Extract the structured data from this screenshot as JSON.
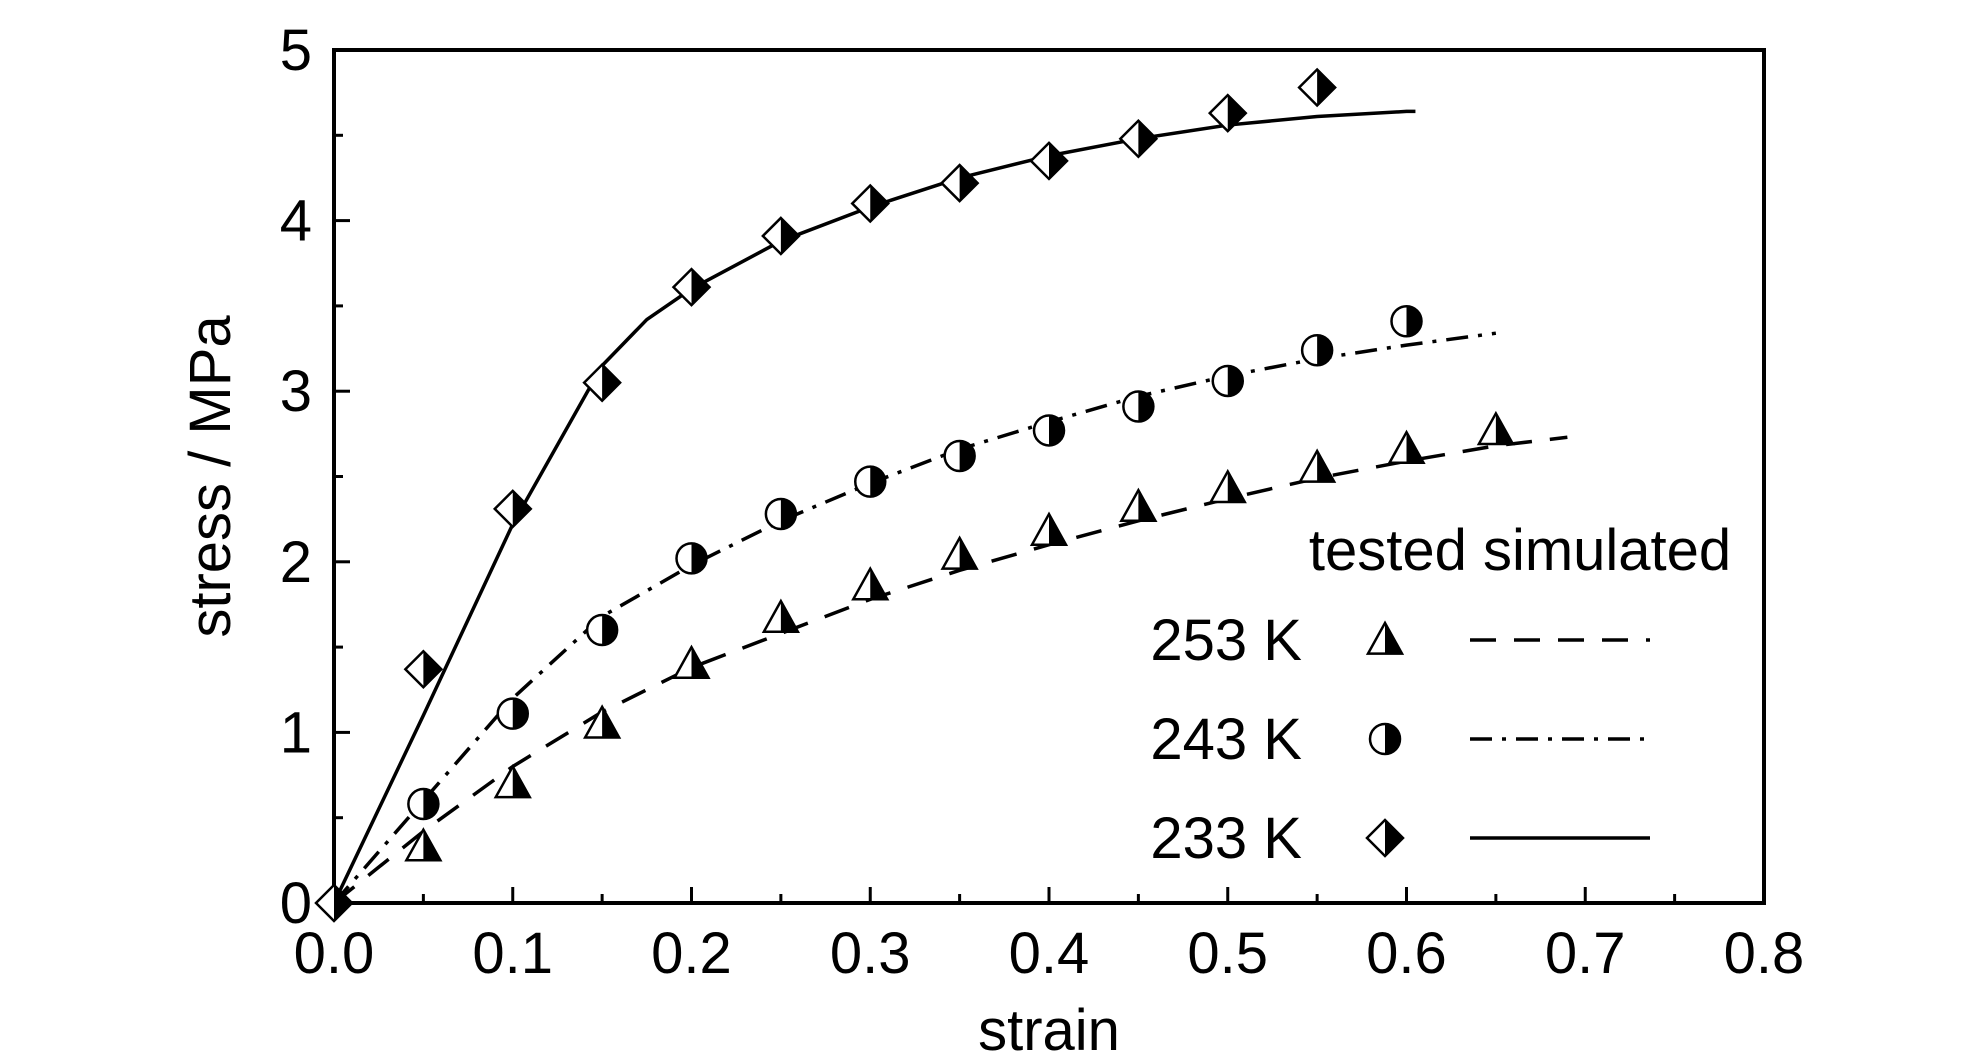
{
  "chart_data": {
    "type": "scatter",
    "title": "",
    "xlabel": "strain",
    "ylabel": "stress / MPa",
    "xlim": [
      0.0,
      0.8
    ],
    "ylim": [
      0,
      5
    ],
    "x_ticks": [
      "0.0",
      "0.1",
      "0.2",
      "0.3",
      "0.4",
      "0.5",
      "0.6",
      "0.7",
      "0.8"
    ],
    "y_ticks": [
      "0",
      "1",
      "2",
      "3",
      "4",
      "5"
    ],
    "grid": false,
    "legend": {
      "placement": "bottom-right",
      "header": "tested simulated",
      "entries": [
        "253 K",
        "243 K",
        "233 K"
      ]
    },
    "series": [
      {
        "name": "253 K",
        "marker": "half-filled-triangle",
        "line_style": "dashed",
        "tested": {
          "x": [
            0.05,
            0.1,
            0.15,
            0.2,
            0.25,
            0.3,
            0.35,
            0.4,
            0.45,
            0.5,
            0.55,
            0.6,
            0.65
          ],
          "y": [
            0.33,
            0.7,
            1.05,
            1.4,
            1.67,
            1.86,
            2.04,
            2.18,
            2.32,
            2.43,
            2.55,
            2.66,
            2.77
          ]
        },
        "simulated": {
          "x": [
            0.0,
            0.05,
            0.1,
            0.15,
            0.2,
            0.25,
            0.3,
            0.35,
            0.4,
            0.45,
            0.5,
            0.55,
            0.6,
            0.65,
            0.69
          ],
          "y": [
            0.0,
            0.42,
            0.8,
            1.12,
            1.38,
            1.58,
            1.78,
            1.95,
            2.1,
            2.24,
            2.37,
            2.49,
            2.59,
            2.68,
            2.73
          ]
        }
      },
      {
        "name": "243 K",
        "marker": "half-filled-circle",
        "line_style": "dash-dot",
        "tested": {
          "x": [
            0.05,
            0.1,
            0.15,
            0.2,
            0.25,
            0.3,
            0.35,
            0.4,
            0.45,
            0.5,
            0.55,
            0.6
          ],
          "y": [
            0.58,
            1.11,
            1.6,
            2.02,
            2.28,
            2.47,
            2.62,
            2.77,
            2.91,
            3.06,
            3.24,
            3.41
          ]
        },
        "simulated": {
          "x": [
            0.0,
            0.05,
            0.1,
            0.15,
            0.2,
            0.25,
            0.3,
            0.35,
            0.4,
            0.45,
            0.5,
            0.55,
            0.6,
            0.65
          ],
          "y": [
            0.0,
            0.6,
            1.2,
            1.68,
            1.98,
            2.24,
            2.46,
            2.66,
            2.82,
            2.97,
            3.09,
            3.19,
            3.27,
            3.34
          ]
        }
      },
      {
        "name": "233 K",
        "marker": "half-filled-diamond",
        "line_style": "solid",
        "tested": {
          "x": [
            0.05,
            0.1,
            0.15,
            0.2,
            0.25,
            0.3,
            0.35,
            0.4,
            0.45,
            0.5,
            0.55
          ],
          "y": [
            1.37,
            2.31,
            3.05,
            3.61,
            3.91,
            4.1,
            4.22,
            4.35,
            4.48,
            4.63,
            4.78
          ]
        },
        "simulated": {
          "x": [
            0.0,
            0.05,
            0.1,
            0.15,
            0.175,
            0.2,
            0.25,
            0.3,
            0.35,
            0.4,
            0.45,
            0.5,
            0.55,
            0.6,
            0.605
          ],
          "y": [
            0.0,
            1.1,
            2.22,
            3.15,
            3.42,
            3.6,
            3.88,
            4.08,
            4.25,
            4.38,
            4.48,
            4.56,
            4.61,
            4.64,
            4.64
          ]
        }
      }
    ]
  }
}
